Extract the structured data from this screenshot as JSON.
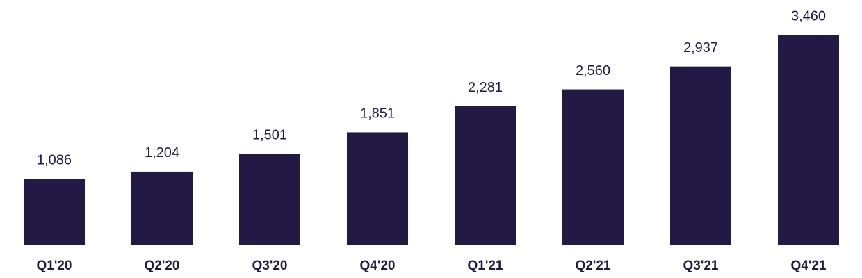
{
  "chart_data": {
    "type": "bar",
    "categories": [
      "Q1'20",
      "Q2'20",
      "Q3'20",
      "Q4'20",
      "Q1'21",
      "Q2'21",
      "Q3'21",
      "Q4'21"
    ],
    "values": [
      1086,
      1204,
      1501,
      1851,
      2281,
      2560,
      2937,
      3460
    ],
    "value_labels": [
      "1,086",
      "1,204",
      "1,501",
      "1,851",
      "2,281",
      "2,560",
      "2,937",
      "3,460"
    ],
    "color": "#221a45"
  }
}
